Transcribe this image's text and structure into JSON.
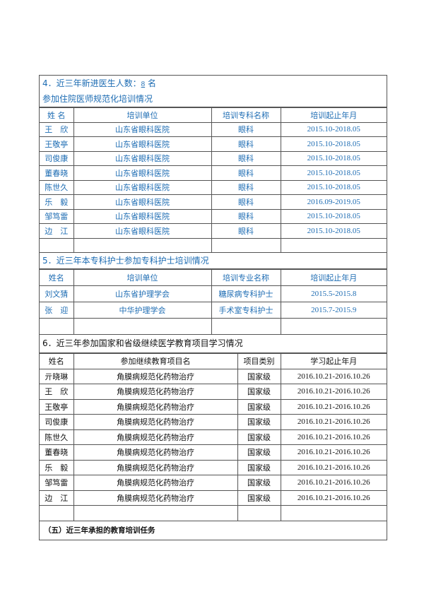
{
  "s4": {
    "title_prefix": "4．近三年新进医生人数：",
    "count": "8",
    "title_suffix": "名",
    "subtitle": "参加住院医师规范化培训情况",
    "headers": [
      "姓 名",
      "培训单位",
      "培训专科名称",
      "培训起止年月"
    ],
    "rows": [
      [
        "王　欣",
        "山东省眼科医院",
        "眼科",
        "2015.10-2018.05"
      ],
      [
        "王敬亭",
        "山东省眼科医院",
        "眼科",
        "2015.10-2018.05"
      ],
      [
        "司俊康",
        "山东省眼科医院",
        "眼科",
        "2015.10-2018.05"
      ],
      [
        "董春晓",
        "山东省眼科医院",
        "眼科",
        "2015.10-2018.05"
      ],
      [
        "陈世久",
        "山东省眼科医院",
        "眼科",
        "2015.10-2018.05"
      ],
      [
        "乐　毅",
        "山东省眼科医院",
        "眼科",
        "2016.09-2019.05"
      ],
      [
        "邹笃雷",
        "山东省眼科医院",
        "眼科",
        "2015.10-2018.05"
      ],
      [
        "边　江",
        "山东省眼科医院",
        "眼科",
        "2015.10-2018.05"
      ]
    ]
  },
  "s5": {
    "title": "5．近三年本专科护士参加专科护士培训情况",
    "headers": [
      "姓名",
      "培训单位",
      "培训专业名称",
      "培训起止年月"
    ],
    "rows": [
      [
        "刘文猜",
        "山东省护理学会",
        "糖尿病专科护士",
        "2015.5-2015.8"
      ],
      [
        "张　迎",
        "中华护理学会",
        "手术室专科护士",
        "2015.7-2015.9"
      ]
    ]
  },
  "s6": {
    "title": "6．近三年参加国家和省级继续医学教育项目学习情况",
    "headers": [
      "姓名",
      "参加继续教育项目名",
      "项目类别",
      "学习起止年月"
    ],
    "rows": [
      [
        "亓晓琳",
        "角膜病规范化药物治疗",
        "国家级",
        "2016.10.21-2016.10.26"
      ],
      [
        "王　欣",
        "角膜病规范化药物治疗",
        "国家级",
        "2016.10.21-2016.10.26"
      ],
      [
        "王敬亭",
        "角膜病规范化药物治疗",
        "国家级",
        "2016.10.21-2016.10.26"
      ],
      [
        "司俊康",
        "角膜病规范化药物治疗",
        "国家级",
        "2016.10.21-2016.10.26"
      ],
      [
        "陈世久",
        "角膜病规范化药物治疗",
        "国家级",
        "2016.10.21-2016.10.26"
      ],
      [
        "董春晓",
        "角膜病规范化药物治疗",
        "国家级",
        "2016.10.21-2016.10.26"
      ],
      [
        "乐　毅",
        "角膜病规范化药物治疗",
        "国家级",
        "2016.10.21-2016.10.26"
      ],
      [
        "邹笃雷",
        "角膜病规范化药物治疗",
        "国家级",
        "2016.10.21-2016.10.26"
      ],
      [
        "边　江",
        "角膜病规范化药物治疗",
        "国家级",
        "2016.10.21-2016.10.26"
      ]
    ]
  },
  "s_last": {
    "title": "（五）近三年承担的教育培训任务"
  }
}
